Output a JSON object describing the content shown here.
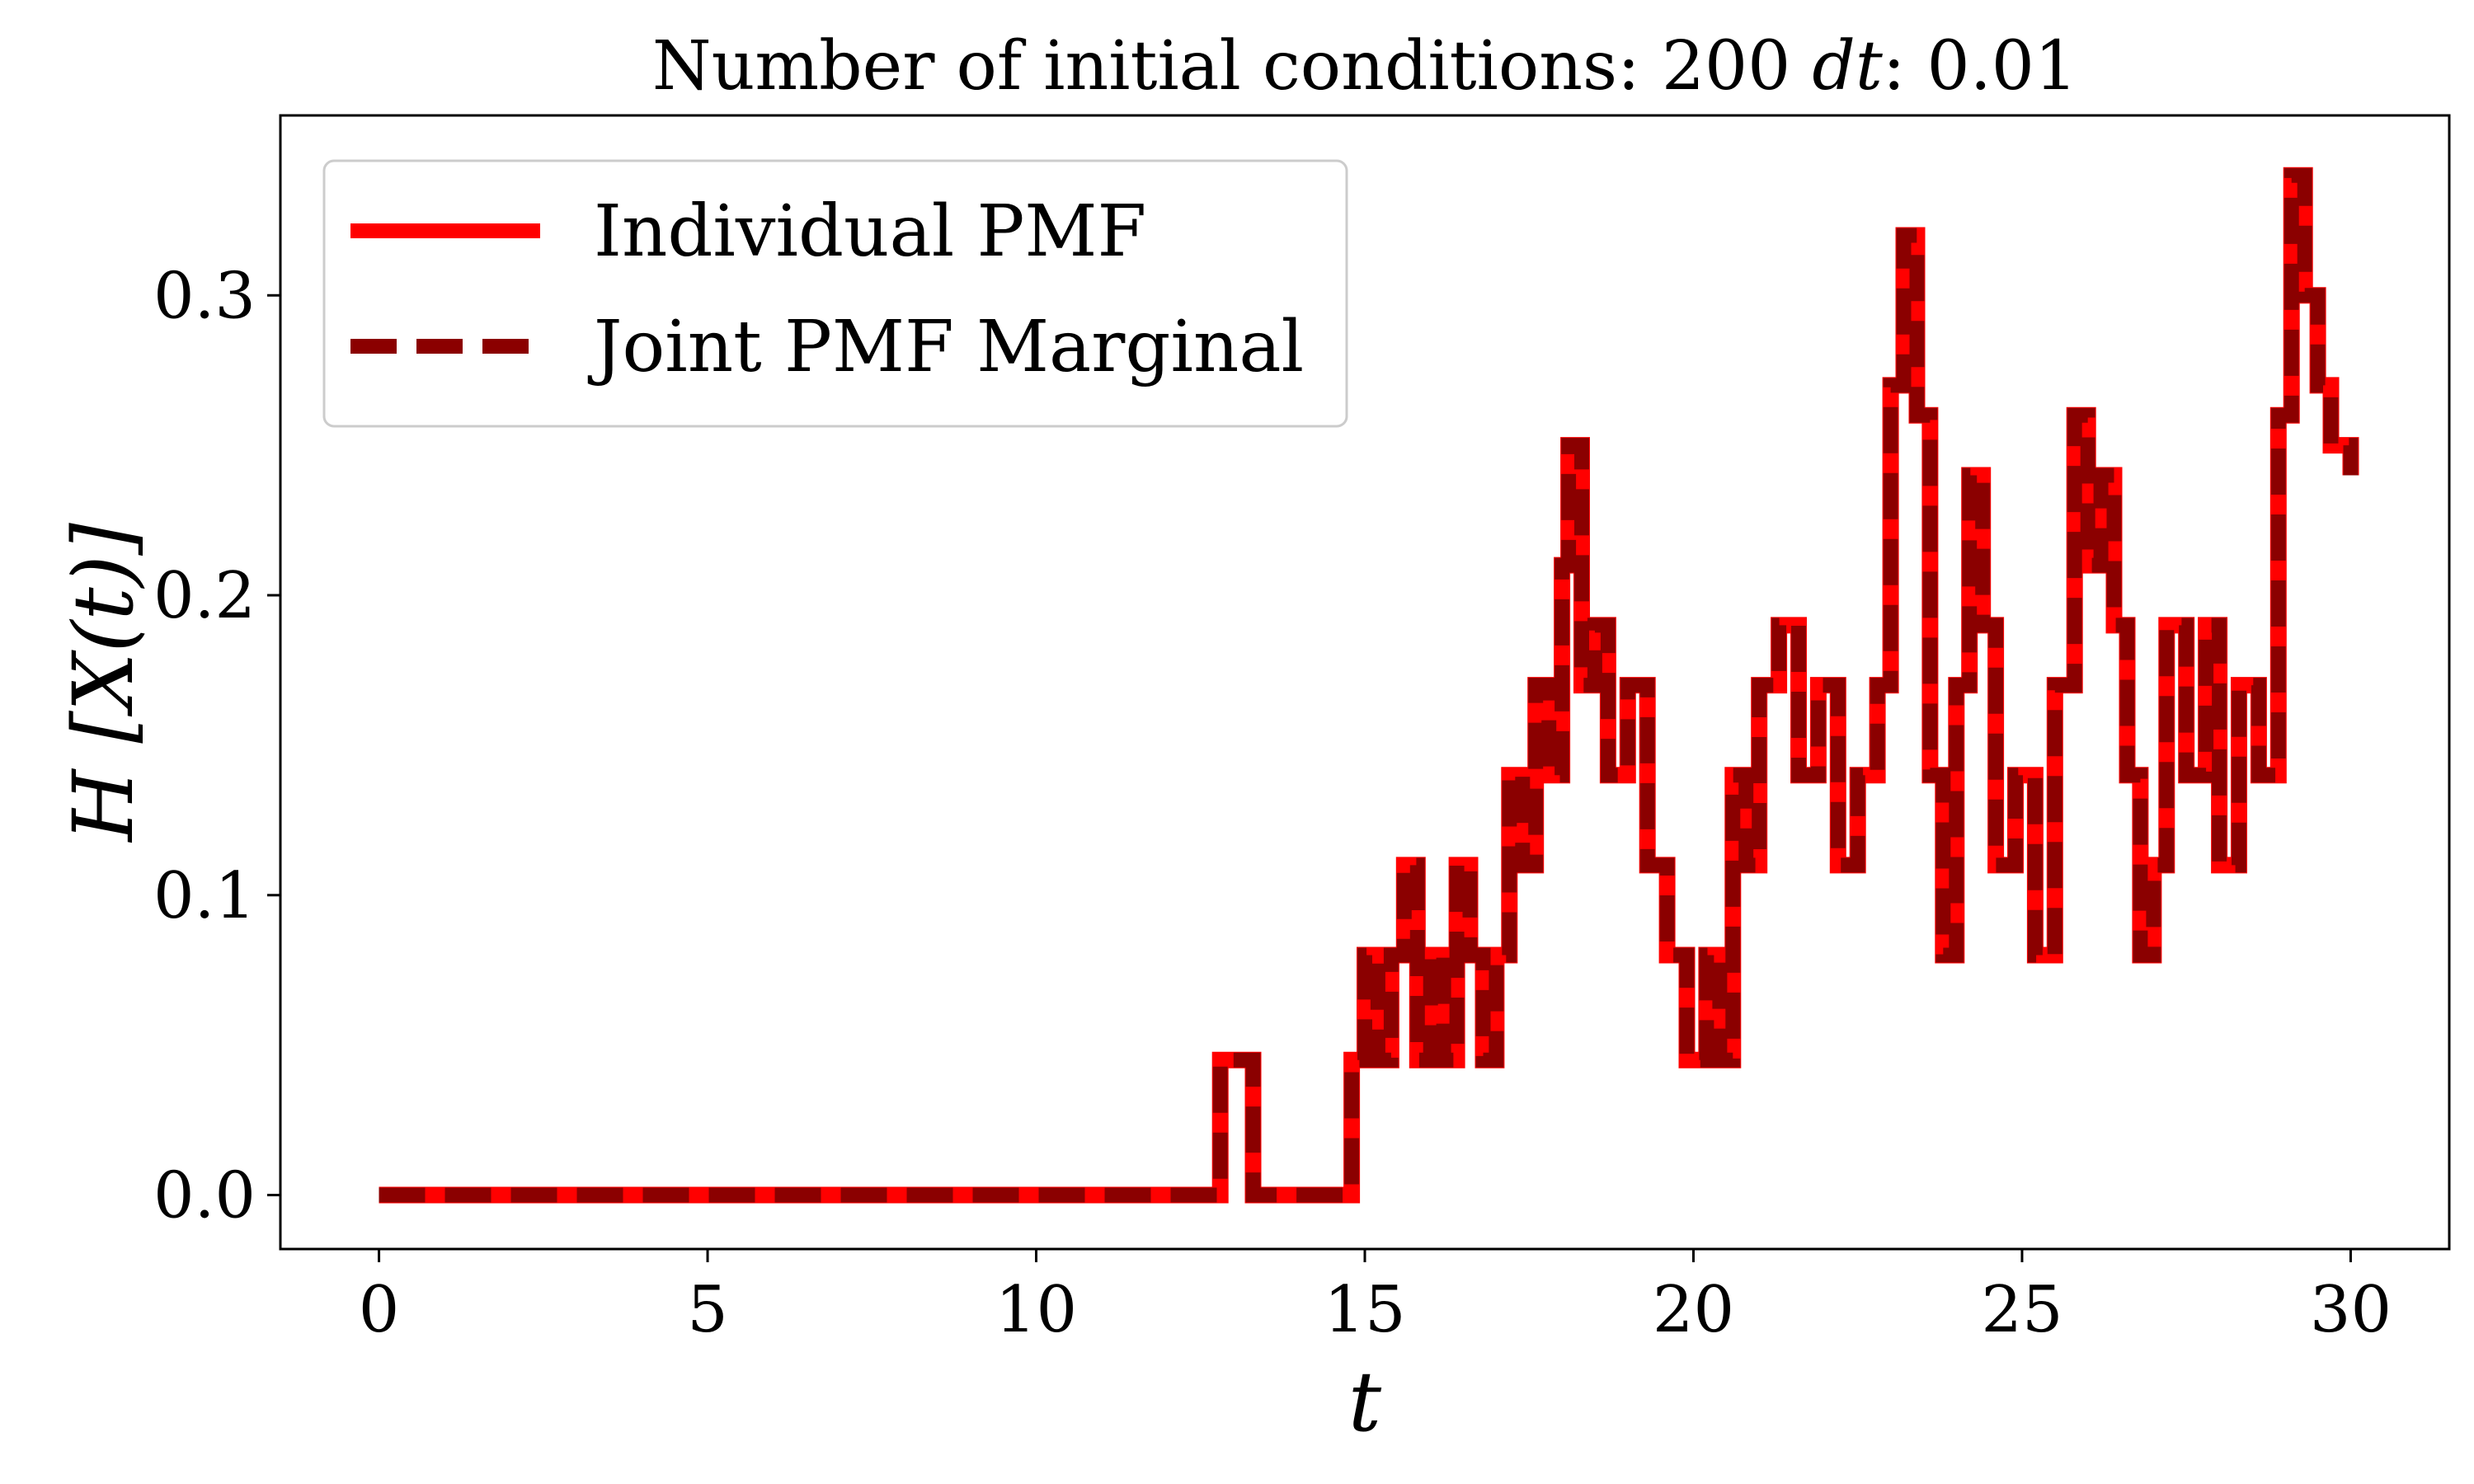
{
  "chart_data": {
    "type": "line",
    "title": "Number of initial conditions: 200 dt: 0.01",
    "title_parts": {
      "prefix": "Number of initial conditions: 200 ",
      "var": "dt",
      "suffix": ": 0.01"
    },
    "xlabel": "t",
    "ylabel": "H [X(t)]",
    "xlim": [
      -1.5,
      31.5
    ],
    "ylim": [
      -0.018,
      0.36
    ],
    "xticks": [
      0,
      5,
      10,
      15,
      20,
      25,
      30
    ],
    "xtick_labels": [
      "0",
      "5",
      "10",
      "15",
      "20",
      "25",
      "30"
    ],
    "yticks": [
      0.0,
      0.1,
      0.2,
      0.3
    ],
    "ytick_labels": [
      "0.0",
      "0.1",
      "0.2",
      "0.3"
    ],
    "grid": false,
    "legend_position": "top-left",
    "step_style": "post",
    "x": [
      0,
      12.8,
      13.3,
      14.8,
      15.0,
      15.2,
      15.4,
      15.6,
      15.8,
      16.0,
      16.2,
      16.4,
      16.6,
      16.8,
      17.0,
      17.2,
      17.4,
      17.6,
      17.8,
      18.0,
      18.1,
      18.3,
      18.5,
      18.7,
      19.0,
      19.3,
      19.6,
      19.9,
      20.2,
      20.4,
      20.6,
      20.8,
      21.0,
      21.3,
      21.6,
      21.9,
      22.2,
      22.5,
      22.8,
      23.0,
      23.2,
      23.4,
      23.6,
      23.8,
      24.0,
      24.2,
      24.4,
      24.6,
      24.9,
      25.2,
      25.5,
      25.8,
      26.0,
      26.2,
      26.4,
      26.6,
      26.8,
      27.0,
      27.2,
      27.5,
      27.8,
      28.0,
      28.3,
      28.6,
      28.9,
      29.1,
      29.3,
      29.5,
      29.7,
      30.0
    ],
    "series": [
      {
        "name": "Individual PMF",
        "color": "#ff0000",
        "style": "solid",
        "values": [
          0.0,
          0.045,
          0.0,
          0.045,
          0.08,
          0.045,
          0.08,
          0.11,
          0.045,
          0.08,
          0.045,
          0.11,
          0.08,
          0.045,
          0.08,
          0.14,
          0.11,
          0.17,
          0.14,
          0.21,
          0.25,
          0.17,
          0.19,
          0.14,
          0.17,
          0.11,
          0.08,
          0.045,
          0.08,
          0.045,
          0.14,
          0.11,
          0.17,
          0.19,
          0.14,
          0.17,
          0.11,
          0.14,
          0.17,
          0.27,
          0.32,
          0.26,
          0.14,
          0.08,
          0.17,
          0.24,
          0.19,
          0.11,
          0.14,
          0.08,
          0.17,
          0.26,
          0.21,
          0.24,
          0.19,
          0.14,
          0.08,
          0.11,
          0.19,
          0.14,
          0.19,
          0.11,
          0.17,
          0.14,
          0.26,
          0.34,
          0.3,
          0.27,
          0.25,
          0.24
        ]
      },
      {
        "name": "Joint PMF Marginal",
        "color": "#8b0000",
        "style": "dashed",
        "values": [
          0.0,
          0.045,
          0.0,
          0.045,
          0.08,
          0.045,
          0.08,
          0.11,
          0.045,
          0.08,
          0.045,
          0.11,
          0.08,
          0.045,
          0.08,
          0.14,
          0.11,
          0.17,
          0.14,
          0.21,
          0.25,
          0.17,
          0.19,
          0.14,
          0.17,
          0.11,
          0.08,
          0.045,
          0.08,
          0.045,
          0.14,
          0.11,
          0.17,
          0.19,
          0.14,
          0.17,
          0.11,
          0.14,
          0.17,
          0.27,
          0.32,
          0.26,
          0.14,
          0.08,
          0.17,
          0.24,
          0.19,
          0.11,
          0.14,
          0.08,
          0.17,
          0.26,
          0.21,
          0.24,
          0.19,
          0.14,
          0.08,
          0.11,
          0.19,
          0.14,
          0.19,
          0.11,
          0.17,
          0.14,
          0.26,
          0.34,
          0.3,
          0.27,
          0.25,
          0.24
        ]
      }
    ]
  }
}
